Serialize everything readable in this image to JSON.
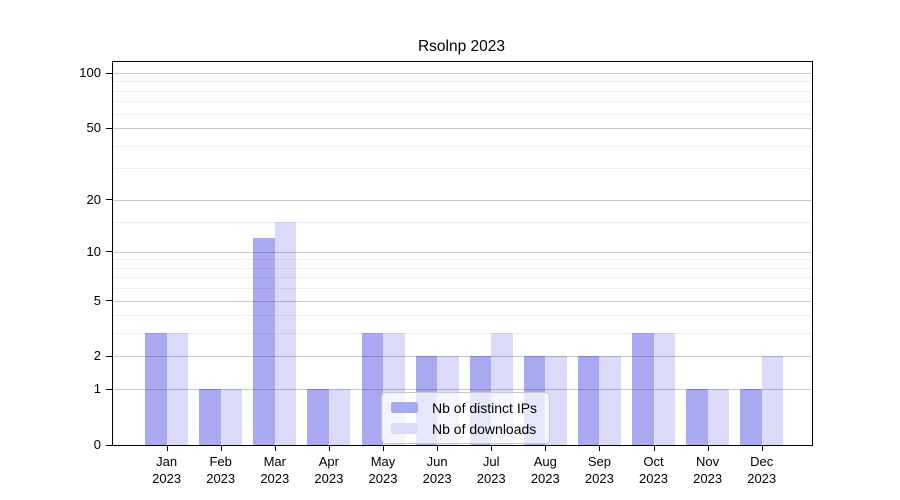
{
  "chart_data": {
    "type": "bar",
    "title": "Rsolnp 2023",
    "categories": [
      "Jan 2023",
      "Feb 2023",
      "Mar 2023",
      "Apr 2023",
      "May 2023",
      "Jun 2023",
      "Jul 2023",
      "Aug 2023",
      "Sep 2023",
      "Oct 2023",
      "Nov 2023",
      "Dec 2023"
    ],
    "series": [
      {
        "name": "Nb of distinct IPs",
        "color": "#a9a9f2",
        "values": [
          3,
          1,
          12,
          1,
          3,
          2,
          2,
          2,
          2,
          3,
          1,
          1
        ]
      },
      {
        "name": "Nb of downloads",
        "color": "#dbdbf9",
        "values": [
          3,
          1,
          15,
          1,
          3,
          2,
          3,
          2,
          2,
          3,
          1,
          2
        ]
      }
    ],
    "xlabel": "",
    "ylabel": "",
    "yscale": "log1p",
    "ylim": [
      0,
      114.7
    ],
    "yticks_labeled": [
      0,
      1,
      2,
      5,
      10,
      20,
      50,
      100
    ],
    "yticks_minor": [
      3,
      4,
      6,
      7,
      8,
      9,
      15,
      30,
      40,
      60,
      70,
      80,
      90
    ],
    "grid": true,
    "legend_position": "inside-bottom-center"
  },
  "style_colors": {
    "grid_major": "rgba(0, 0, 0, 0.21)",
    "grid_minor": "rgba(0, 0, 0, 0.07)",
    "axis": "#000000",
    "text": "#000000",
    "background": "#ffffff"
  }
}
